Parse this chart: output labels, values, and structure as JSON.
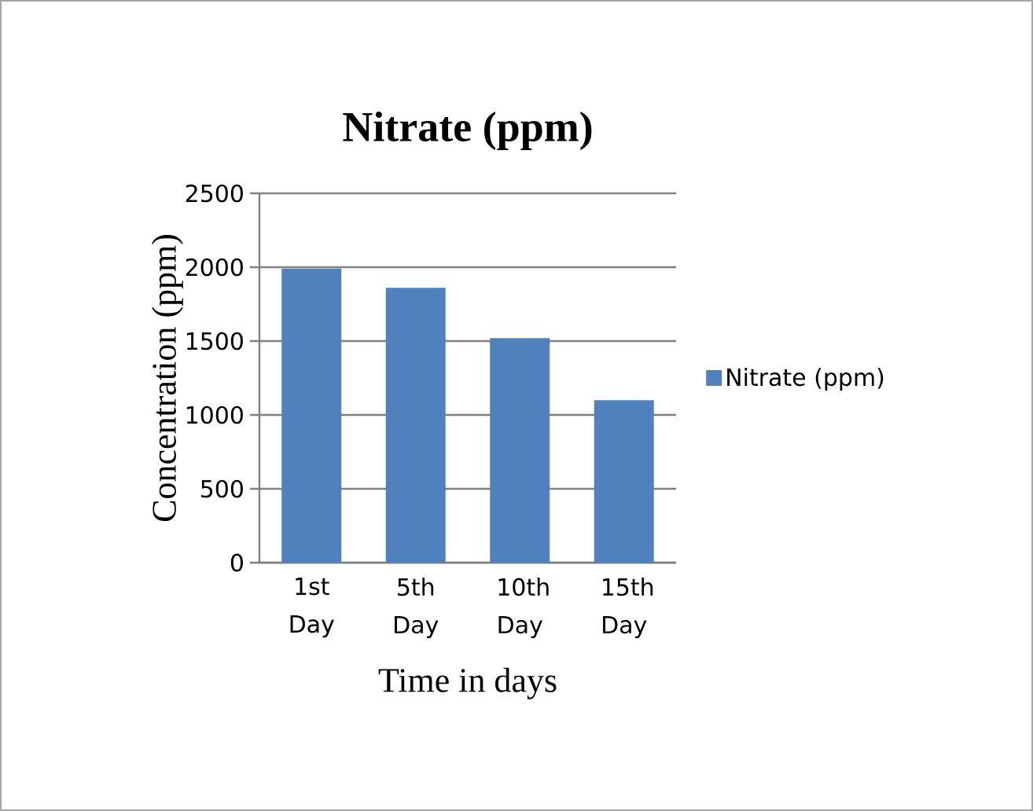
{
  "chart_data": {
    "type": "bar",
    "title": "Nitrate (ppm)",
    "xlabel": "Time in days",
    "ylabel": "Concentration (ppm)",
    "categories": [
      "1st Day",
      "5th Day",
      "10th Day",
      "15th Day"
    ],
    "series": [
      {
        "name": "Nitrate (ppm)",
        "color": "#4f81bd",
        "values": [
          1990,
          1860,
          1520,
          1100
        ]
      }
    ],
    "ylim": [
      0,
      2500
    ],
    "yticks": [
      0,
      500,
      1000,
      1500,
      2000,
      2500
    ],
    "grid": "y",
    "legend": "right"
  }
}
